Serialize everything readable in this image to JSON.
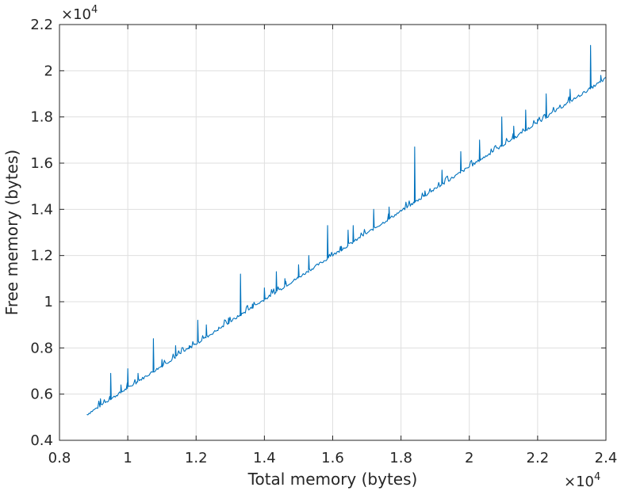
{
  "chart_data": {
    "type": "line",
    "title": "",
    "xlabel": "Total memory (bytes)",
    "ylabel": "Free memory (bytes)",
    "x_multiplier_label": "×10",
    "x_multiplier_exp": "4",
    "y_multiplier_label": "×10",
    "y_multiplier_exp": "4",
    "xlim": [
      0.8,
      2.4
    ],
    "ylim": [
      0.4,
      2.2
    ],
    "grid": true,
    "xticks": [
      0.8,
      1,
      1.2,
      1.4,
      1.6,
      1.8,
      2,
      2.2,
      2.4
    ],
    "xtick_labels": [
      "0.8",
      "1",
      "1.2",
      "1.4",
      "1.6",
      "1.8",
      "2",
      "2.2",
      "2.4"
    ],
    "yticks": [
      0.4,
      0.6,
      0.8,
      1,
      1.2,
      1.4,
      1.6,
      1.8,
      2,
      2.2
    ],
    "ytick_labels": [
      "0.4",
      "0.6",
      "0.8",
      "1",
      "1.2",
      "1.4",
      "1.6",
      "1.8",
      "2",
      "2.2"
    ],
    "series": [
      {
        "name": "free memory",
        "color": "#0072BD",
        "baseline_x": [
          0.88,
          2.4
        ],
        "baseline_y": [
          0.51,
          1.965
        ],
        "baseline_noise": 0.012,
        "spikes": [
          {
            "x": 0.92,
            "y": 0.58
          },
          {
            "x": 0.95,
            "y": 0.69
          },
          {
            "x": 0.98,
            "y": 0.64
          },
          {
            "x": 1.0,
            "y": 0.71
          },
          {
            "x": 1.03,
            "y": 0.69
          },
          {
            "x": 1.075,
            "y": 0.84
          },
          {
            "x": 1.1,
            "y": 0.75
          },
          {
            "x": 1.14,
            "y": 0.81
          },
          {
            "x": 1.18,
            "y": 0.81
          },
          {
            "x": 1.205,
            "y": 0.92
          },
          {
            "x": 1.23,
            "y": 0.9
          },
          {
            "x": 1.265,
            "y": 0.88
          },
          {
            "x": 1.295,
            "y": 0.93
          },
          {
            "x": 1.33,
            "y": 1.12
          },
          {
            "x": 1.365,
            "y": 0.99
          },
          {
            "x": 1.4,
            "y": 1.06
          },
          {
            "x": 1.435,
            "y": 1.13
          },
          {
            "x": 1.46,
            "y": 1.1
          },
          {
            "x": 1.5,
            "y": 1.16
          },
          {
            "x": 1.53,
            "y": 1.2
          },
          {
            "x": 1.585,
            "y": 1.33
          },
          {
            "x": 1.625,
            "y": 1.24
          },
          {
            "x": 1.645,
            "y": 1.31
          },
          {
            "x": 1.66,
            "y": 1.33
          },
          {
            "x": 1.72,
            "y": 1.4
          },
          {
            "x": 1.765,
            "y": 1.41
          },
          {
            "x": 1.84,
            "y": 1.67
          },
          {
            "x": 1.87,
            "y": 1.48
          },
          {
            "x": 1.92,
            "y": 1.57
          },
          {
            "x": 1.975,
            "y": 1.65
          },
          {
            "x": 2.03,
            "y": 1.7
          },
          {
            "x": 2.095,
            "y": 1.8
          },
          {
            "x": 2.13,
            "y": 1.76
          },
          {
            "x": 2.165,
            "y": 1.83
          },
          {
            "x": 2.2,
            "y": 1.79
          },
          {
            "x": 2.225,
            "y": 1.9
          },
          {
            "x": 2.295,
            "y": 1.92
          },
          {
            "x": 2.355,
            "y": 2.11
          },
          {
            "x": 2.385,
            "y": 1.98
          }
        ]
      }
    ]
  }
}
